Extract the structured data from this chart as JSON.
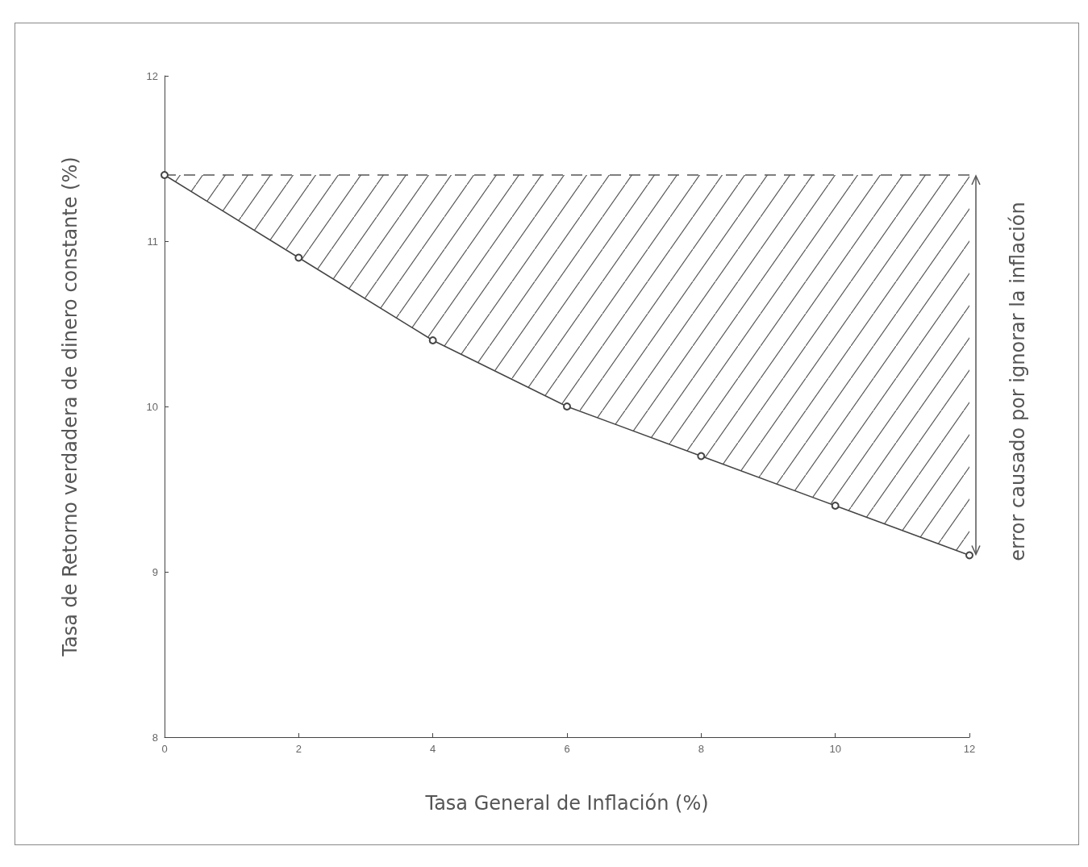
{
  "chart_data": {
    "type": "line",
    "xlabel": "Tasa General de Inflación (%)",
    "ylabel": "Tasa de Retorno verdadera de dinero constante (%)",
    "x": [
      0,
      2,
      4,
      6,
      8,
      10,
      12
    ],
    "series": [
      {
        "color": "#444444",
        "values": [
          11.4,
          10.9,
          10.4,
          10.0,
          9.7,
          9.4,
          9.1
        ],
        "lower": [
          11.4,
          10.9,
          10.4,
          10.0,
          9.7,
          9.4,
          9.1
        ],
        "upper": [
          11.4,
          11.4,
          11.4,
          11.4,
          11.4,
          11.4,
          11.4
        ]
      }
    ],
    "xlim": [
      0,
      12
    ],
    "xticks": [
      0,
      2,
      4,
      6,
      8,
      10,
      12
    ],
    "ylim": [
      8,
      12
    ],
    "yticks": [
      8,
      9,
      10,
      11,
      12
    ],
    "ref_lines": [
      {
        "axis": "y",
        "value": 11.4,
        "line_style": "dashed",
        "color": "#555555"
      }
    ],
    "annotations": [
      "error causado por ignorar la inflación"
    ],
    "grid": false,
    "marker": "circle",
    "line_style": "solid"
  }
}
